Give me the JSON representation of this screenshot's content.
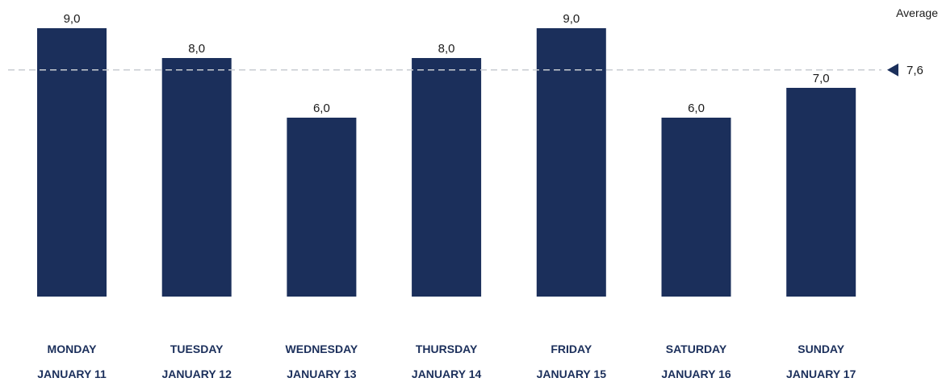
{
  "chart_data": {
    "type": "bar",
    "categories": [
      [
        "MONDAY",
        "JANUARY 11"
      ],
      [
        "TUESDAY",
        "JANUARY 12"
      ],
      [
        "WEDNESDAY",
        "JANUARY 13"
      ],
      [
        "THURSDAY",
        "JANUARY 14"
      ],
      [
        "FRIDAY",
        "JANUARY 15"
      ],
      [
        "SATURDAY",
        "JANUARY 16"
      ],
      [
        "SUNDAY",
        "JANUARY 17"
      ]
    ],
    "values": [
      9.0,
      8.0,
      6.0,
      8.0,
      9.0,
      6.0,
      7.0
    ],
    "value_labels": [
      "9,0",
      "8,0",
      "6,0",
      "8,0",
      "9,0",
      "6,0",
      "7,0"
    ],
    "ylim": [
      0,
      9
    ],
    "grid": false,
    "average": {
      "title": "Average",
      "value": 7.6,
      "label": "7,6"
    },
    "colors": {
      "bar": "#1b2f5b",
      "average_line": "#c8ccd2",
      "category_text": "#1b2f5b"
    }
  }
}
